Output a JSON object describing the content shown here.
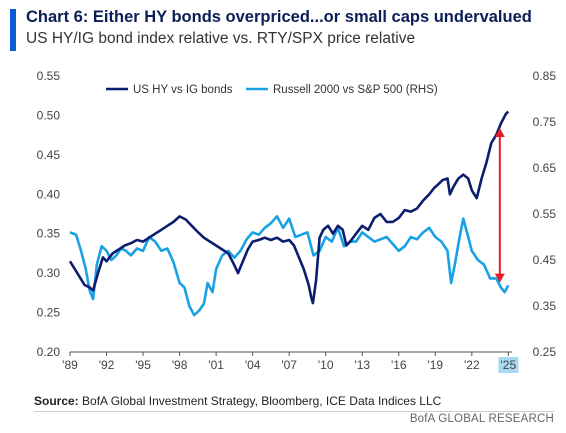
{
  "header": {
    "title": "Chart 6: Either HY bonds overpriced...or small caps undervalued",
    "subtitle": "US HY/IG bond index relative vs. RTY/SPX price relative"
  },
  "footer": {
    "source_label": "Source:",
    "source_text": "BofA Global Investment Strategy, Bloomberg, ICE Data Indices LLC",
    "brand": "BofA GLOBAL RESEARCH"
  },
  "colors": {
    "accent": "#0a5cd6",
    "series_hy_ig": "#0b1e6e",
    "series_rty_spx": "#19a1e6",
    "arrow": "#e41e26",
    "highlight": "#a9d8f2"
  },
  "chart_data": {
    "type": "line",
    "title": "Chart 6: Either HY bonds overpriced...or small caps undervalued",
    "subtitle": "US HY/IG bond index relative vs. RTY/SPX price relative",
    "xlim": [
      1989,
      2025.3
    ],
    "ylim": [
      0.2,
      0.55
    ],
    "y2lim": [
      0.25,
      0.85
    ],
    "x_ticks": [
      1989,
      1992,
      1995,
      1998,
      2001,
      2004,
      2007,
      2010,
      2013,
      2016,
      2019,
      2022,
      2025
    ],
    "x_tick_labels": [
      "'89",
      "'92",
      "'95",
      "'98",
      "'01",
      "'04",
      "'07",
      "'10",
      "'13",
      "'16",
      "'19",
      "'22",
      "'25"
    ],
    "highlighted_tick": "'25",
    "y_ticks": [
      "0.20",
      "0.25",
      "0.30",
      "0.35",
      "0.40",
      "0.45",
      "0.50",
      "0.55"
    ],
    "y2_ticks": [
      "0.25",
      "0.35",
      "0.45",
      "0.55",
      "0.65",
      "0.75",
      "0.85"
    ],
    "legend_position": "top",
    "annotation": "red double-headed arrow showing gap between series in 2024",
    "arrow": {
      "x": 2024.3,
      "from_y": 0.484,
      "to_y": 0.288
    },
    "series": [
      {
        "name": "US HY vs IG bonds",
        "axis": "left",
        "x": [
          1989.0,
          1989.4,
          1989.8,
          1990.2,
          1990.6,
          1990.9,
          1991.3,
          1991.7,
          1992.0,
          1992.5,
          1993.0,
          1993.5,
          1994.0,
          1994.5,
          1995.0,
          1995.5,
          1996.0,
          1996.5,
          1997.0,
          1997.5,
          1998.0,
          1998.5,
          1999.0,
          1999.5,
          2000.0,
          2000.5,
          2001.0,
          2001.5,
          2002.0,
          2002.5,
          2002.8,
          2003.2,
          2003.6,
          2004.0,
          2004.5,
          2005.0,
          2005.5,
          2006.0,
          2006.5,
          2007.0,
          2007.4,
          2007.8,
          2008.2,
          2008.6,
          2008.8,
          2008.95,
          2009.2,
          2009.5,
          2009.8,
          2010.2,
          2010.6,
          2011.0,
          2011.4,
          2011.7,
          2012.0,
          2012.5,
          2013.0,
          2013.5,
          2014.0,
          2014.5,
          2015.0,
          2015.5,
          2016.0,
          2016.5,
          2017.0,
          2017.5,
          2018.0,
          2018.5,
          2018.9,
          2019.2,
          2019.6,
          2020.0,
          2020.2,
          2020.5,
          2020.9,
          2021.3,
          2021.7,
          2022.0,
          2022.4,
          2022.8,
          2023.2,
          2023.6,
          2024.0,
          2024.4,
          2024.8,
          2025.0
        ],
        "y": [
          0.315,
          0.305,
          0.295,
          0.285,
          0.282,
          0.278,
          0.3,
          0.32,
          0.315,
          0.325,
          0.33,
          0.335,
          0.338,
          0.342,
          0.34,
          0.345,
          0.35,
          0.355,
          0.36,
          0.365,
          0.372,
          0.368,
          0.36,
          0.352,
          0.345,
          0.34,
          0.335,
          0.33,
          0.325,
          0.31,
          0.3,
          0.315,
          0.33,
          0.34,
          0.342,
          0.345,
          0.342,
          0.345,
          0.34,
          0.342,
          0.335,
          0.32,
          0.305,
          0.285,
          0.27,
          0.262,
          0.29,
          0.345,
          0.355,
          0.36,
          0.35,
          0.36,
          0.355,
          0.335,
          0.34,
          0.35,
          0.36,
          0.355,
          0.37,
          0.375,
          0.365,
          0.365,
          0.37,
          0.38,
          0.378,
          0.382,
          0.392,
          0.4,
          0.408,
          0.412,
          0.418,
          0.42,
          0.4,
          0.41,
          0.42,
          0.425,
          0.42,
          0.405,
          0.395,
          0.42,
          0.44,
          0.465,
          0.475,
          0.49,
          0.502,
          0.505
        ]
      },
      {
        "name": "Russell 2000 vs S&P 500 (RHS)",
        "axis": "right",
        "x": [
          1989.0,
          1989.5,
          1989.9,
          1990.3,
          1990.6,
          1990.9,
          1991.2,
          1991.6,
          1992.0,
          1992.4,
          1992.8,
          1993.2,
          1993.6,
          1994.0,
          1994.5,
          1995.0,
          1995.5,
          1996.0,
          1996.5,
          1997.0,
          1997.5,
          1998.0,
          1998.4,
          1998.8,
          1999.2,
          1999.6,
          2000.0,
          2000.3,
          2000.7,
          2001.0,
          2001.5,
          2002.0,
          2002.5,
          2003.0,
          2003.5,
          2004.0,
          2004.5,
          2005.0,
          2005.5,
          2006.0,
          2006.5,
          2007.0,
          2007.5,
          2008.0,
          2008.5,
          2009.0,
          2009.5,
          2010.0,
          2010.5,
          2011.0,
          2011.5,
          2012.0,
          2012.5,
          2013.0,
          2013.5,
          2014.0,
          2014.5,
          2015.0,
          2015.5,
          2016.0,
          2016.5,
          2017.0,
          2017.5,
          2018.0,
          2018.5,
          2019.0,
          2019.5,
          2020.0,
          2020.3,
          2020.6,
          2021.0,
          2021.3,
          2021.7,
          2022.0,
          2022.5,
          2023.0,
          2023.5,
          2024.0,
          2024.4,
          2024.7,
          2025.0
        ],
        "y": [
          0.51,
          0.505,
          0.47,
          0.43,
          0.385,
          0.365,
          0.44,
          0.48,
          0.47,
          0.45,
          0.46,
          0.475,
          0.47,
          0.46,
          0.475,
          0.47,
          0.5,
          0.49,
          0.47,
          0.475,
          0.445,
          0.4,
          0.39,
          0.35,
          0.33,
          0.34,
          0.355,
          0.4,
          0.38,
          0.43,
          0.46,
          0.47,
          0.455,
          0.47,
          0.495,
          0.51,
          0.505,
          0.52,
          0.53,
          0.545,
          0.52,
          0.54,
          0.5,
          0.505,
          0.51,
          0.46,
          0.47,
          0.5,
          0.49,
          0.52,
          0.48,
          0.49,
          0.49,
          0.51,
          0.5,
          0.49,
          0.495,
          0.5,
          0.485,
          0.47,
          0.48,
          0.5,
          0.495,
          0.51,
          0.52,
          0.5,
          0.49,
          0.47,
          0.4,
          0.44,
          0.5,
          0.54,
          0.5,
          0.47,
          0.45,
          0.44,
          0.41,
          0.41,
          0.39,
          0.38,
          0.395
        ]
      }
    ]
  }
}
